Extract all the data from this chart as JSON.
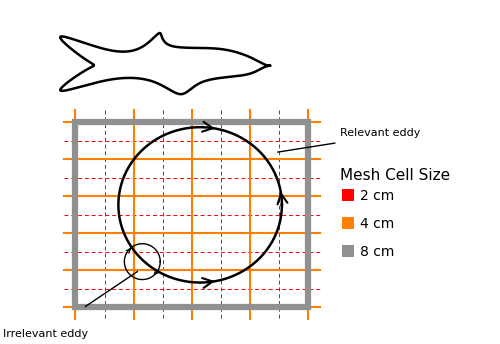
{
  "fig_width": 5.0,
  "fig_height": 3.44,
  "dpi": 100,
  "bg_color": "#ffffff",
  "grid_2cm_color": "#ff0000",
  "grid_4cm_color": "#ff8000",
  "grid_8cm_color": "#909090",
  "legend_title": "Mesh Cell Size",
  "legend_items": [
    "2 cm",
    "4 cm",
    "8 cm"
  ],
  "legend_colors": [
    "#ff0000",
    "#ff8000",
    "#909090"
  ],
  "relevant_eddy_label": "Relevant eddy",
  "irrelevant_eddy_label": "Irrelevant eddy",
  "grid8_lw": 4.5,
  "grid4_lw": 1.5,
  "grid2_lw": 0.7
}
